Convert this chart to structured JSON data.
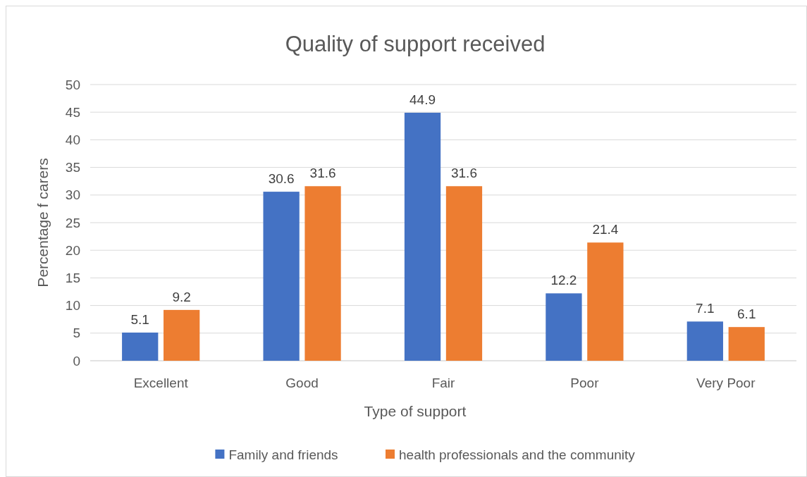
{
  "chart_data": {
    "type": "bar",
    "title": "Quality of support received",
    "xlabel": "Type of support",
    "ylabel": "Percentage f carers",
    "categories": [
      "Excellent",
      "Good",
      "Fair",
      "Poor",
      "Very Poor"
    ],
    "series": [
      {
        "name": "Family and friends",
        "color": "#4472c4",
        "values": [
          5.1,
          30.6,
          44.9,
          12.2,
          7.1
        ]
      },
      {
        "name": "health professionals and the community",
        "color": "#ed7d31",
        "values": [
          9.2,
          31.6,
          31.6,
          21.4,
          6.1
        ]
      }
    ],
    "ylim": [
      0,
      50
    ],
    "yticks": [
      0,
      5,
      10,
      15,
      20,
      25,
      30,
      35,
      40,
      45,
      50
    ],
    "grid": "y",
    "legend": "bottom",
    "data_labels": true
  }
}
